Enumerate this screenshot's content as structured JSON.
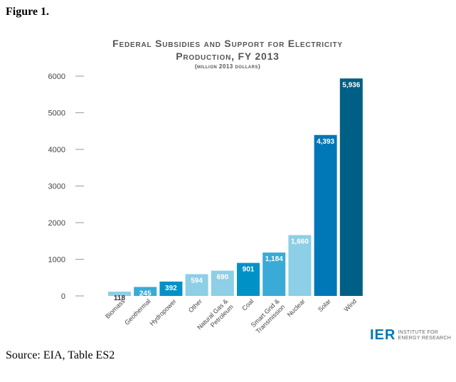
{
  "figure_label": "Figure 1.",
  "source_note": "Source: EIA, Table ES2",
  "logo": {
    "mark": "IER",
    "line1": "INSTITUTE FOR",
    "line2": "ENERGY RESEARCH"
  },
  "chart_data": {
    "type": "bar",
    "title_line1": "Federal Subsidies and Support for Electricity",
    "title_line2": "Production, FY 2013",
    "subtitle": "(million 2013 dollars)",
    "xlabel": "",
    "ylabel": "",
    "ylim": [
      0,
      6000
    ],
    "yticks": [
      0,
      1000,
      2000,
      3000,
      4000,
      5000,
      6000
    ],
    "ytick_labels": [
      "0",
      "1000",
      "2000",
      "3000",
      "4000",
      "5000",
      "6000"
    ],
    "grid": false,
    "categories": [
      "Biomass",
      "Geothermal",
      "Hydropower",
      "Other",
      "Natural Gas & Petroleum",
      "Coal",
      "Smart Grid & Transmission",
      "Nuclear",
      "Solar",
      "Wind"
    ],
    "values": [
      118,
      245,
      392,
      594,
      690,
      901,
      1184,
      1660,
      4393,
      5936
    ],
    "value_labels": [
      "118",
      "245",
      "392",
      "594",
      "690",
      "901",
      "1,184",
      "1,660",
      "4,393",
      "5,936"
    ],
    "colors": [
      "#8ccfe6",
      "#3aaad6",
      "#0091c7",
      "#8ccfe6",
      "#8ccfe6",
      "#0091c7",
      "#3aaad6",
      "#8ccfe6",
      "#0077b6",
      "#005f85"
    ],
    "label_colors": [
      "#333333",
      "#ffffff",
      "#ffffff",
      "#ffffff",
      "#ffffff",
      "#ffffff",
      "#ffffff",
      "#ffffff",
      "#ffffff",
      "#ffffff"
    ]
  }
}
